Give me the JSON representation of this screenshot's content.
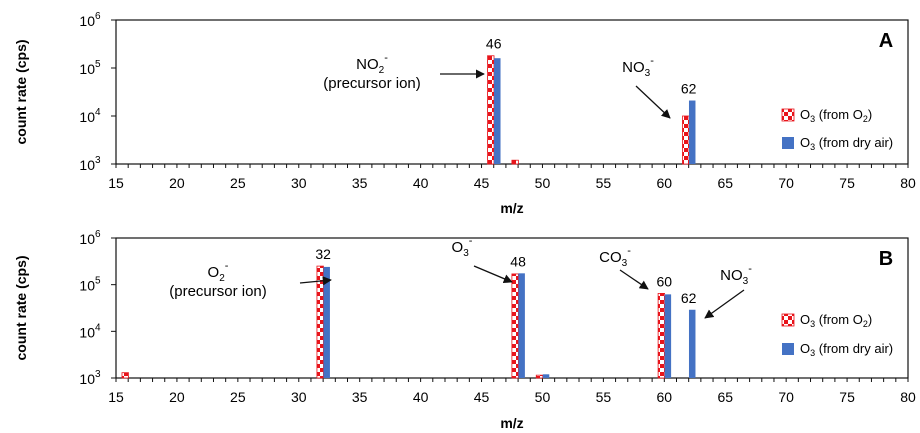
{
  "chart_data": [
    {
      "type": "bar",
      "panel_label": "A",
      "xlabel": "m/z",
      "ylabel": "count rate (cps)",
      "xlim": [
        15,
        80
      ],
      "x_ticks": [
        15,
        20,
        25,
        30,
        35,
        40,
        45,
        50,
        55,
        60,
        65,
        70,
        75,
        80
      ],
      "ylim": [
        1000,
        1000000
      ],
      "yscale": "log",
      "y_ticks": [
        {
          "base": "10",
          "exp": "3"
        },
        {
          "base": "10",
          "exp": "4"
        },
        {
          "base": "10",
          "exp": "5"
        },
        {
          "base": "10",
          "exp": "6"
        }
      ],
      "legend_position": "right",
      "series": [
        {
          "name": "O3 (from O2)",
          "legend": {
            "pre": "O",
            "sub1": "3",
            "mid": " (from O",
            "sub2": "2",
            "post": ")"
          },
          "color": "#e8141b",
          "pattern": "checker",
          "points": [
            {
              "x": 46,
              "y": 180000
            },
            {
              "x": 48,
              "y": 1200
            },
            {
              "x": 62,
              "y": 10000
            }
          ]
        },
        {
          "name": "O3 (from dry air)",
          "legend": {
            "pre": "O",
            "sub1": "3",
            "mid": " (from dry air)",
            "sub2": "",
            "post": ""
          },
          "color": "#4472c4",
          "pattern": "solid",
          "points": [
            {
              "x": 46,
              "y": 160000
            },
            {
              "x": 62,
              "y": 21000
            }
          ]
        }
      ],
      "peak_labels": [
        {
          "x": 46,
          "text": "46"
        },
        {
          "x": 62,
          "text": "62"
        }
      ],
      "annotations": [
        {
          "id": "no2",
          "ion": "NO",
          "sub": "2",
          "sup": "-",
          "line2": "(precursor ion)"
        },
        {
          "id": "no3",
          "ion": "NO",
          "sub": "3",
          "sup": "-",
          "line2": ""
        }
      ]
    },
    {
      "type": "bar",
      "panel_label": "B",
      "xlabel": "m/z",
      "ylabel": "count rate (cps)",
      "xlim": [
        15,
        80
      ],
      "x_ticks": [
        15,
        20,
        25,
        30,
        35,
        40,
        45,
        50,
        55,
        60,
        65,
        70,
        75,
        80
      ],
      "ylim": [
        1000,
        1000000
      ],
      "yscale": "log",
      "y_ticks": [
        {
          "base": "10",
          "exp": "3"
        },
        {
          "base": "10",
          "exp": "4"
        },
        {
          "base": "10",
          "exp": "5"
        },
        {
          "base": "10",
          "exp": "6"
        }
      ],
      "legend_position": "right",
      "series": [
        {
          "name": "O3 (from O2)",
          "legend": {
            "pre": "O",
            "sub1": "3",
            "mid": " (from O",
            "sub2": "2",
            "post": ")"
          },
          "color": "#e8141b",
          "pattern": "checker",
          "points": [
            {
              "x": 16,
              "y": 1300
            },
            {
              "x": 32,
              "y": 250000
            },
            {
              "x": 48,
              "y": 170000
            },
            {
              "x": 50,
              "y": 1150
            },
            {
              "x": 60,
              "y": 65000
            }
          ]
        },
        {
          "name": "O3 (from dry air)",
          "legend": {
            "pre": "O",
            "sub1": "3",
            "mid": " (from dry air)",
            "sub2": "",
            "post": ""
          },
          "color": "#4472c4",
          "pattern": "solid",
          "points": [
            {
              "x": 32,
              "y": 240000
            },
            {
              "x": 48,
              "y": 175000
            },
            {
              "x": 50,
              "y": 1200
            },
            {
              "x": 60,
              "y": 62000
            },
            {
              "x": 62,
              "y": 29000
            }
          ]
        }
      ],
      "peak_labels": [
        {
          "x": 32,
          "text": "32"
        },
        {
          "x": 48,
          "text": "48"
        },
        {
          "x": 60,
          "text": "60"
        },
        {
          "x": 62,
          "text": "62"
        }
      ],
      "annotations": [
        {
          "id": "o2",
          "ion": "O",
          "sub": "2",
          "sup": "-",
          "line2": "(precursor ion)"
        },
        {
          "id": "o3",
          "ion": "O",
          "sub": "3",
          "sup": "-",
          "line2": ""
        },
        {
          "id": "co3",
          "ion": "CO",
          "sub": "3",
          "sup": "-",
          "line2": ""
        },
        {
          "id": "no3",
          "ion": "NO",
          "sub": "3",
          "sup": "-",
          "line2": ""
        }
      ]
    }
  ]
}
